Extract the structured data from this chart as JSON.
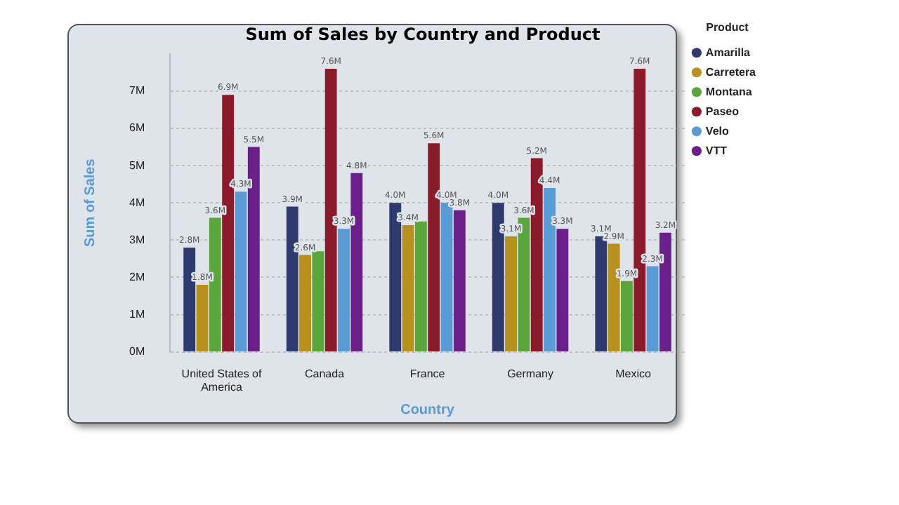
{
  "chart_data": {
    "type": "bar",
    "title": "Sum of Sales by Country and Product",
    "xlabel": "Country",
    "ylabel": "Sum of Sales",
    "legend_title": "Product",
    "legend": "right",
    "grid": "y",
    "categories": [
      "United States of America",
      "Canada",
      "France",
      "Germany",
      "Mexico"
    ],
    "ylim": [
      0,
      8
    ],
    "yticks": [
      {
        "value": 0,
        "label": "0M"
      },
      {
        "value": 1,
        "label": "1M"
      },
      {
        "value": 2,
        "label": "2M"
      },
      {
        "value": 3,
        "label": "3M"
      },
      {
        "value": 4,
        "label": "4M"
      },
      {
        "value": 5,
        "label": "5M"
      },
      {
        "value": 6,
        "label": "6M"
      },
      {
        "value": 7,
        "label": "7M"
      }
    ],
    "series": [
      {
        "name": "Amarilla",
        "color": "#2e3a6e",
        "values": [
          2.8,
          3.9,
          4.0,
          4.0,
          3.1
        ],
        "value_labels": [
          "2.8M",
          "3.9M",
          "4.0M",
          "4.0M",
          "3.1M"
        ]
      },
      {
        "name": "Carretera",
        "color": "#b8901e",
        "values": [
          1.8,
          2.6,
          3.4,
          3.1,
          2.9
        ],
        "value_labels": [
          "1.8M",
          "2.6M",
          "3.4M",
          "3.1M",
          "2.9M"
        ]
      },
      {
        "name": "Montana",
        "color": "#5aa63c",
        "values": [
          3.6,
          2.7,
          3.5,
          3.6,
          1.9
        ],
        "value_labels": [
          "3.6M",
          null,
          null,
          "3.6M",
          "1.9M"
        ]
      },
      {
        "name": "Paseo",
        "color": "#8b1a2a",
        "values": [
          6.9,
          7.6,
          5.6,
          5.2,
          7.6
        ],
        "value_labels": [
          "6.9M",
          "7.6M",
          "5.6M",
          "5.2M",
          "7.6M"
        ]
      },
      {
        "name": "Velo",
        "color": "#5b9bd5",
        "values": [
          4.3,
          3.3,
          4.0,
          4.4,
          2.3
        ],
        "value_labels": [
          "4.3M",
          "3.3M",
          "4.0M",
          "4.4M",
          "2.3M"
        ]
      },
      {
        "name": "VTT",
        "color": "#6a1f8a",
        "values": [
          5.5,
          4.8,
          3.8,
          3.3,
          3.2
        ],
        "value_labels": [
          "5.5M",
          "4.8M",
          "3.8M",
          "3.3M",
          "3.2M"
        ]
      }
    ]
  }
}
